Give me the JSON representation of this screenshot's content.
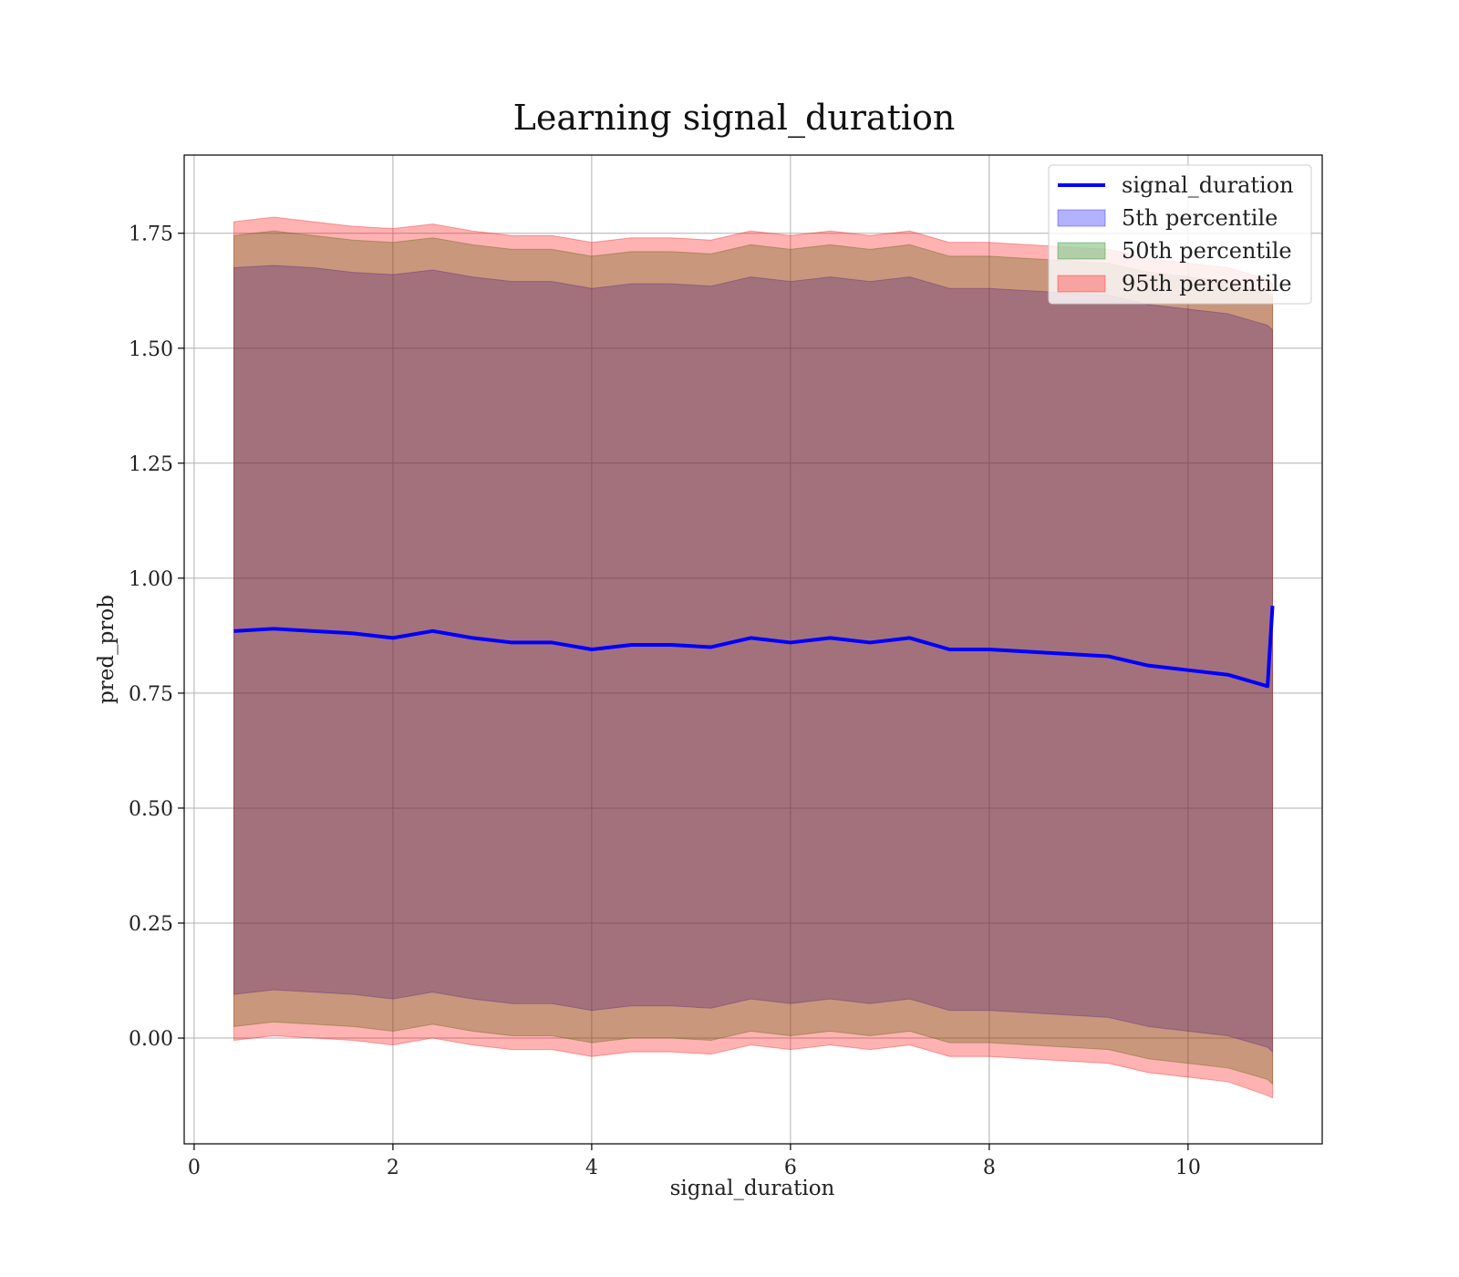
{
  "chart_data": {
    "type": "line",
    "title": "Learning signal_duration",
    "xlabel": "signal_duration",
    "ylabel": "pred_prob",
    "xlim": [
      -0.1,
      11.35
    ],
    "ylim": [
      -0.23,
      1.92
    ],
    "x_ticks": [
      0,
      2,
      4,
      6,
      8,
      10
    ],
    "x_tick_labels": [
      "0",
      "2",
      "4",
      "6",
      "8",
      "10"
    ],
    "y_ticks": [
      0,
      0.25,
      0.5,
      0.75,
      1.0,
      1.25,
      1.5,
      1.75
    ],
    "y_tick_labels": [
      "0.00",
      "0.25",
      "0.50",
      "0.75",
      "1.00",
      "1.25",
      "1.50",
      "1.75"
    ],
    "grid": true,
    "legend_position": "top-right",
    "x": [
      0.4,
      0.8,
      1.2,
      1.6,
      2.0,
      2.4,
      2.8,
      3.2,
      3.6,
      4.0,
      4.4,
      4.8,
      5.2,
      5.6,
      6.0,
      6.4,
      6.8,
      7.2,
      7.6,
      8.0,
      8.4,
      8.8,
      9.2,
      9.6,
      10.0,
      10.4,
      10.8,
      10.85
    ],
    "series": [
      {
        "name": "signal_duration",
        "kind": "line",
        "color": "#0000ff",
        "values": [
          0.885,
          0.89,
          0.885,
          0.88,
          0.87,
          0.885,
          0.87,
          0.86,
          0.86,
          0.845,
          0.855,
          0.855,
          0.85,
          0.87,
          0.86,
          0.87,
          0.86,
          0.87,
          0.845,
          0.845,
          0.84,
          0.835,
          0.83,
          0.81,
          0.8,
          0.79,
          0.765,
          0.94
        ]
      },
      {
        "name": "5th percentile",
        "kind": "band",
        "color": "#0000ff",
        "lower": [
          0.095,
          0.105,
          0.1,
          0.095,
          0.085,
          0.1,
          0.085,
          0.075,
          0.075,
          0.06,
          0.07,
          0.07,
          0.065,
          0.085,
          0.075,
          0.085,
          0.075,
          0.085,
          0.06,
          0.06,
          0.055,
          0.05,
          0.045,
          0.025,
          0.015,
          0.005,
          -0.02,
          -0.03
        ],
        "upper": [
          1.675,
          1.68,
          1.675,
          1.665,
          1.66,
          1.67,
          1.655,
          1.645,
          1.645,
          1.63,
          1.64,
          1.64,
          1.635,
          1.655,
          1.645,
          1.655,
          1.645,
          1.655,
          1.63,
          1.63,
          1.625,
          1.62,
          1.615,
          1.595,
          1.585,
          1.575,
          1.55,
          1.54
        ]
      },
      {
        "name": "50th percentile",
        "kind": "band",
        "color": "#008000",
        "lower": [
          0.025,
          0.035,
          0.03,
          0.025,
          0.015,
          0.03,
          0.015,
          0.005,
          0.005,
          -0.01,
          0.0,
          0.0,
          -0.005,
          0.015,
          0.005,
          0.015,
          0.005,
          0.015,
          -0.01,
          -0.01,
          -0.015,
          -0.02,
          -0.025,
          -0.045,
          -0.055,
          -0.065,
          -0.09,
          -0.1
        ],
        "upper": [
          1.745,
          1.755,
          1.745,
          1.735,
          1.73,
          1.74,
          1.725,
          1.715,
          1.715,
          1.7,
          1.71,
          1.71,
          1.705,
          1.725,
          1.715,
          1.725,
          1.715,
          1.725,
          1.7,
          1.7,
          1.695,
          1.69,
          1.685,
          1.665,
          1.655,
          1.645,
          1.62,
          1.61
        ]
      },
      {
        "name": "95th percentile",
        "kind": "band",
        "color": "#ff0000",
        "lower": [
          -0.005,
          0.005,
          0.0,
          -0.005,
          -0.015,
          0.0,
          -0.015,
          -0.025,
          -0.025,
          -0.04,
          -0.03,
          -0.03,
          -0.035,
          -0.015,
          -0.025,
          -0.015,
          -0.025,
          -0.015,
          -0.04,
          -0.04,
          -0.045,
          -0.05,
          -0.055,
          -0.075,
          -0.085,
          -0.095,
          -0.125,
          -0.13
        ],
        "upper": [
          1.775,
          1.785,
          1.775,
          1.765,
          1.76,
          1.77,
          1.755,
          1.745,
          1.745,
          1.73,
          1.74,
          1.74,
          1.735,
          1.755,
          1.745,
          1.755,
          1.745,
          1.755,
          1.73,
          1.73,
          1.725,
          1.72,
          1.715,
          1.695,
          1.685,
          1.675,
          1.65,
          1.64
        ]
      }
    ]
  }
}
